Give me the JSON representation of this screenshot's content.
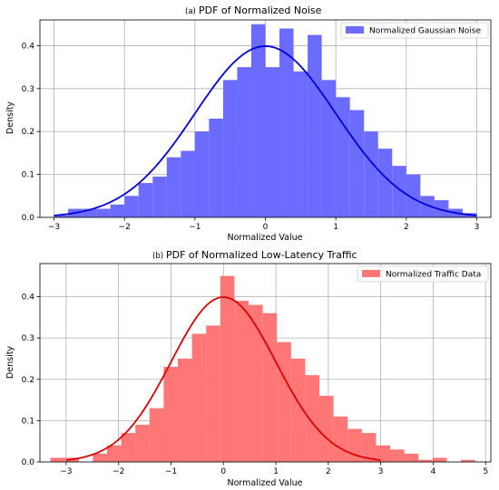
{
  "chart_data": [
    {
      "type": "bar",
      "panel_prefix": "(a)",
      "title": "PDF of Normalized Noise",
      "xlabel": "Normalized Value",
      "ylabel": "Density",
      "xlim": [
        -3.2,
        3.2
      ],
      "ylim": [
        0,
        0.46
      ],
      "xticks": [
        -3,
        -2,
        -1,
        0,
        1,
        2,
        3
      ],
      "yticks": [
        0.0,
        0.1,
        0.2,
        0.3,
        0.4
      ],
      "ytick_labels": [
        "0.0",
        "0.1",
        "0.2",
        "0.3",
        "0.4"
      ],
      "grid": true,
      "legend_position": "top-right",
      "bar_color": "#6b6bff",
      "curve_color": "#0000dd",
      "bin_edges": [
        -3.0,
        -2.8,
        -2.6,
        -2.4,
        -2.2,
        -2.0,
        -1.8,
        -1.6,
        -1.4,
        -1.2,
        -1.0,
        -0.8,
        -0.6,
        -0.4,
        -0.2,
        0.0,
        0.2,
        0.4,
        0.6,
        0.8,
        1.0,
        1.2,
        1.4,
        1.6,
        1.8,
        2.0,
        2.2,
        2.4,
        2.6,
        2.8,
        3.0
      ],
      "series": [
        {
          "name": "Normalized Gaussian Noise",
          "values": [
            0.005,
            0.02,
            0.02,
            0.02,
            0.03,
            0.05,
            0.08,
            0.095,
            0.14,
            0.155,
            0.2,
            0.23,
            0.32,
            0.35,
            0.45,
            0.35,
            0.44,
            0.34,
            0.425,
            0.32,
            0.28,
            0.25,
            0.2,
            0.16,
            0.12,
            0.1,
            0.05,
            0.04,
            0.02,
            0.01
          ]
        }
      ],
      "curve": {
        "type": "normal_pdf",
        "mean": 0,
        "std": 1,
        "x_range": [
          -3,
          3
        ]
      }
    },
    {
      "type": "bar",
      "panel_prefix": "(b)",
      "title": "PDF of Normalized Low-Latency Traffic",
      "xlabel": "Normalized Value",
      "ylabel": "Density",
      "xlim": [
        -3.5,
        5.1
      ],
      "ylim": [
        0,
        0.48
      ],
      "xticks": [
        -3,
        -2,
        -1,
        0,
        1,
        2,
        3,
        4,
        5
      ],
      "yticks": [
        0.0,
        0.1,
        0.2,
        0.3,
        0.4
      ],
      "ytick_labels": [
        "0.0",
        "0.1",
        "0.2",
        "0.3",
        "0.4"
      ],
      "grid": true,
      "legend_position": "top-right",
      "bar_color": "#ff7676",
      "curve_color": "#e00000",
      "bin_start": -3.3,
      "bin_width": 0.27,
      "series": [
        {
          "name": "Normalized Traffic Data",
          "values": [
            0.01,
            0.01,
            0.0,
            0.02,
            0.04,
            0.07,
            0.09,
            0.13,
            0.23,
            0.25,
            0.31,
            0.33,
            0.45,
            0.39,
            0.38,
            0.36,
            0.29,
            0.25,
            0.21,
            0.16,
            0.11,
            0.08,
            0.07,
            0.04,
            0.03,
            0.02,
            0.005,
            0.01,
            0.0,
            0.005,
            0.0,
            0.0,
            0.005,
            0.0,
            0.0,
            0.005,
            0.0,
            0.005
          ]
        }
      ],
      "curve": {
        "type": "normal_pdf",
        "mean": 0,
        "std": 1,
        "x_range": [
          -3,
          3
        ]
      }
    }
  ]
}
